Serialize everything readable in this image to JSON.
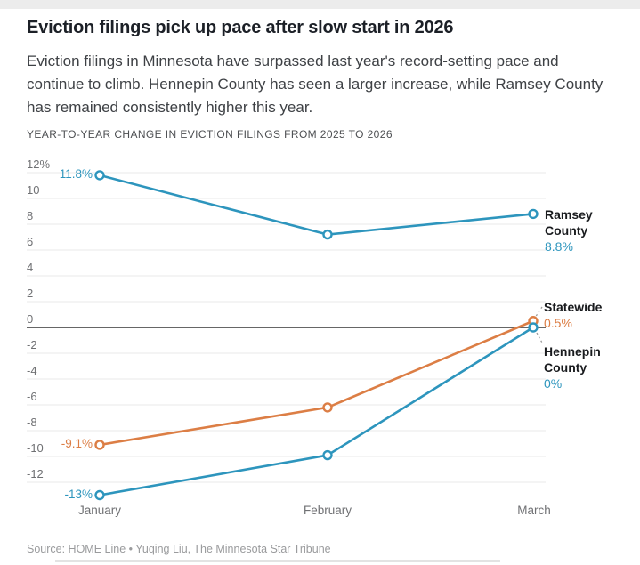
{
  "page": {
    "title": "Eviction filings pick up pace after slow start in 2026",
    "description": "Eviction filings in Minnesota have surpassed last year's record-setting pace and continue to climb. Hennepin County has seen a larger increase, while Ramsey County has remained consistently higher this year.",
    "kicker": "YEAR-TO-YEAR CHANGE IN EVICTION FILINGS FROM 2025 TO 2026",
    "source": "Source: HOME Line • Yuqing Liu, The Minnesota Star Tribune"
  },
  "chart_data": {
    "type": "line",
    "title": "YEAR-TO-YEAR CHANGE IN EVICTION FILINGS FROM 2025 TO 2026",
    "categories": [
      "January",
      "February",
      "March"
    ],
    "series": [
      {
        "name": "Ramsey County",
        "color": "#2d95bd",
        "values": [
          11.8,
          7.2,
          8.8
        ],
        "start_label": "11.8%",
        "end_label": "8.8%",
        "annotation_lines": [
          "Ramsey",
          "County"
        ]
      },
      {
        "name": "Statewide",
        "color": "#dc7e45",
        "values": [
          -9.1,
          -6.2,
          0.5
        ],
        "start_label": "-9.1%",
        "end_label": "0.5%",
        "annotation_lines": [
          "Statewide"
        ]
      },
      {
        "name": "Hennepin County",
        "color": "#2d95bd",
        "values": [
          -13,
          -9.9,
          0
        ],
        "start_label": "-13%",
        "end_label": "0%",
        "annotation_lines": [
          "Hennepin",
          "County"
        ]
      }
    ],
    "y_ticks": [
      {
        "v": 12,
        "label": "12%"
      },
      {
        "v": 10,
        "label": "10"
      },
      {
        "v": 8,
        "label": "8"
      },
      {
        "v": 6,
        "label": "6"
      },
      {
        "v": 4,
        "label": "4"
      },
      {
        "v": 2,
        "label": "2"
      },
      {
        "v": 0,
        "label": "0"
      },
      {
        "v": -2,
        "label": "-2"
      },
      {
        "v": -4,
        "label": "-4"
      },
      {
        "v": -6,
        "label": "-6"
      },
      {
        "v": -8,
        "label": "-8"
      },
      {
        "v": -10,
        "label": "-10"
      },
      {
        "v": -12,
        "label": "-12"
      }
    ],
    "xlabel": "",
    "ylabel": "",
    "ylim": [
      -14,
      12
    ],
    "unit": "percent",
    "grid": true,
    "zero_line": true,
    "legend_position": "right-annotations"
  },
  "colors": {
    "blue": "#2d95bd",
    "orange": "#dc7e45",
    "grid": "#e9e9e9",
    "zero_line": "#515151",
    "leader_dots": "#9a9a9a"
  }
}
